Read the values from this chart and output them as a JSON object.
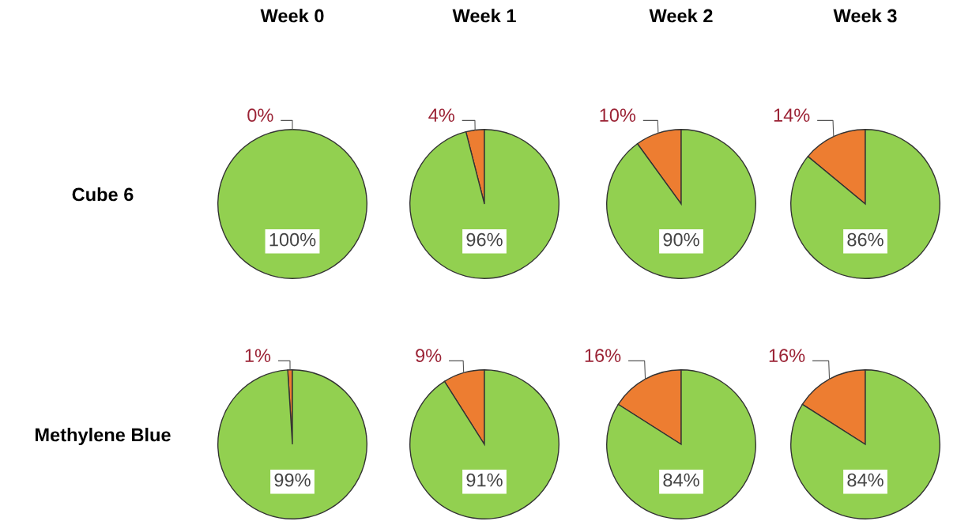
{
  "chart_data": [
    {
      "type": "pie",
      "title": "Week 0",
      "ylabel": "Cube 6",
      "categories": [
        null,
        null
      ],
      "values": [
        0,
        100
      ],
      "colors": [
        "#ed7d31",
        "#92d050"
      ],
      "value_labels": [
        "0%",
        "100%"
      ]
    },
    {
      "type": "pie",
      "title": "Week 1",
      "categories": [
        null,
        null
      ],
      "values": [
        4,
        96
      ],
      "colors": [
        "#ed7d31",
        "#92d050"
      ],
      "value_labels": [
        "4%",
        "96%"
      ]
    },
    {
      "type": "pie",
      "title": "Week 2",
      "categories": [
        null,
        null
      ],
      "values": [
        10,
        90
      ],
      "colors": [
        "#ed7d31",
        "#92d050"
      ],
      "value_labels": [
        "10%",
        "90%"
      ]
    },
    {
      "type": "pie",
      "title": "Week 3",
      "categories": [
        null,
        null
      ],
      "values": [
        14,
        86
      ],
      "colors": [
        "#ed7d31",
        "#92d050"
      ],
      "value_labels": [
        "14%",
        "86%"
      ]
    },
    {
      "type": "pie",
      "ylabel": "Methylene Blue",
      "categories": [
        null,
        null
      ],
      "values": [
        1,
        99
      ],
      "colors": [
        "#ed7d31",
        "#92d050"
      ],
      "value_labels": [
        "1%",
        "99%"
      ]
    },
    {
      "type": "pie",
      "categories": [
        null,
        null
      ],
      "values": [
        9,
        91
      ],
      "colors": [
        "#ed7d31",
        "#92d050"
      ],
      "value_labels": [
        "9%",
        "91%"
      ]
    },
    {
      "type": "pie",
      "categories": [
        null,
        null
      ],
      "values": [
        16,
        84
      ],
      "colors": [
        "#ed7d31",
        "#92d050"
      ],
      "value_labels": [
        "16%",
        "84%"
      ]
    },
    {
      "type": "pie",
      "categories": [
        null,
        null
      ],
      "values": [
        16,
        84
      ],
      "colors": [
        "#ed7d31",
        "#92d050"
      ],
      "value_labels": [
        "16%",
        "84%"
      ]
    }
  ]
}
